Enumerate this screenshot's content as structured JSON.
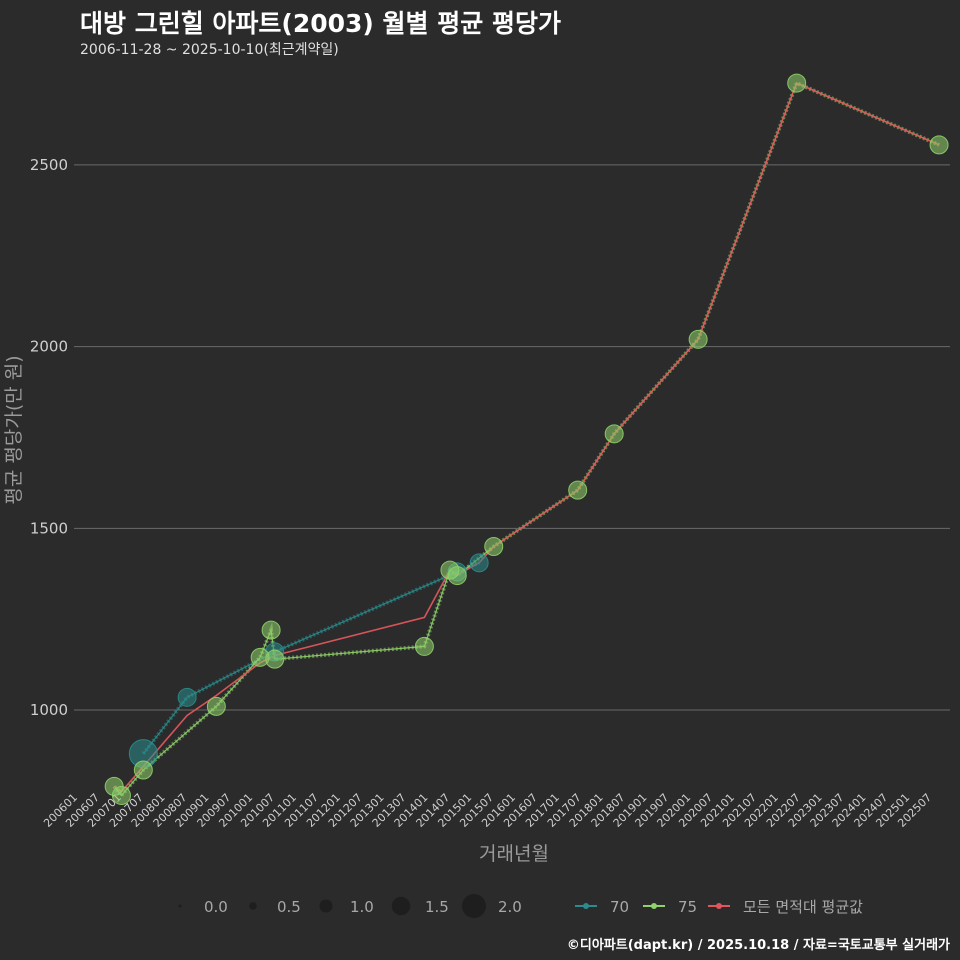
{
  "header": {
    "title": "대방 그린힐 아파트(2003) 월별 평균 평당가",
    "subtitle": "2006-11-28 ~ 2025-10-10(최근계약일)",
    "credit": "©디아파트(dapt.kr) / 2025.10.18 / 자료=국토교통부 실거래가"
  },
  "colors": {
    "background": "#2b2b2c",
    "grid": "#6a6a6a",
    "series_70": "#2a8c8c",
    "series_75": "#8fd16a",
    "series_avg": "#e0565c"
  },
  "chart_data": {
    "type": "line",
    "title": "대방 그린힐 아파트(2003) 월별 평균 평당가",
    "xlabel": "거래년월",
    "ylabel": "평균 평당가(만 원)",
    "x_range": [
      2006.0,
      2026.0
    ],
    "ylim": [
      780,
      2750
    ],
    "y_ticks": [
      1000,
      1500,
      2000,
      2500
    ],
    "x_tick_labels": [
      "200601",
      "200607",
      "200701",
      "200707",
      "200801",
      "200807",
      "200901",
      "200907",
      "201001",
      "201007",
      "201101",
      "201107",
      "201201",
      "201207",
      "201301",
      "201307",
      "201401",
      "201407",
      "201501",
      "201507",
      "201601",
      "201607",
      "201701",
      "201707",
      "201801",
      "201807",
      "201901",
      "201907",
      "202001",
      "202007",
      "202101",
      "202107",
      "202201",
      "202207",
      "202301",
      "202307",
      "202401",
      "202407",
      "202501",
      "202507"
    ],
    "grid": true,
    "size_legend": {
      "title": "",
      "values": [
        "0.0",
        "0.5",
        "1.0",
        "1.5",
        "2.0"
      ]
    },
    "series": [
      {
        "name": "70",
        "points": [
          {
            "x": 2007.583,
            "y": 880,
            "size": 2.0
          },
          {
            "x": 2008.583,
            "y": 1035,
            "size": 1.0
          },
          {
            "x": 2010.583,
            "y": 1160,
            "size": 1.0
          },
          {
            "x": 2014.75,
            "y": 1380,
            "size": 1.0
          },
          {
            "x": 2015.25,
            "y": 1405,
            "size": 1.0
          }
        ]
      },
      {
        "name": "75",
        "points": [
          {
            "x": 2006.917,
            "y": 790,
            "size": 1.0
          },
          {
            "x": 2007.083,
            "y": 765,
            "size": 1.0
          },
          {
            "x": 2007.583,
            "y": 835,
            "size": 1.0
          },
          {
            "x": 2009.25,
            "y": 1010,
            "size": 1.0
          },
          {
            "x": 2010.25,
            "y": 1145,
            "size": 1.0
          },
          {
            "x": 2010.583,
            "y": 1140,
            "size": 1.0
          },
          {
            "x": 2010.5,
            "y": 1220,
            "size": 1.0
          },
          {
            "x": 2014.0,
            "y": 1175,
            "size": 1.0
          },
          {
            "x": 2014.583,
            "y": 1385,
            "size": 1.0
          },
          {
            "x": 2014.75,
            "y": 1370,
            "size": 1.0
          },
          {
            "x": 2015.583,
            "y": 1450,
            "size": 1.0
          },
          {
            "x": 2017.5,
            "y": 1605,
            "size": 1.0
          },
          {
            "x": 2018.333,
            "y": 1760,
            "size": 1.0
          },
          {
            "x": 2020.25,
            "y": 2020,
            "size": 1.0
          },
          {
            "x": 2022.5,
            "y": 2725,
            "size": 1.0
          },
          {
            "x": 2025.75,
            "y": 2555,
            "size": 1.0
          }
        ]
      },
      {
        "name": "모든 면적대 평균값",
        "points": [
          {
            "x": 2006.917,
            "y": 790
          },
          {
            "x": 2007.083,
            "y": 775
          },
          {
            "x": 2007.583,
            "y": 845
          },
          {
            "x": 2008.583,
            "y": 985
          },
          {
            "x": 2009.25,
            "y": 1040
          },
          {
            "x": 2010.25,
            "y": 1130
          },
          {
            "x": 2010.583,
            "y": 1150
          },
          {
            "x": 2014.0,
            "y": 1255
          },
          {
            "x": 2014.583,
            "y": 1385
          },
          {
            "x": 2014.75,
            "y": 1372
          },
          {
            "x": 2015.25,
            "y": 1405
          },
          {
            "x": 2015.583,
            "y": 1450
          },
          {
            "x": 2017.5,
            "y": 1605
          },
          {
            "x": 2018.333,
            "y": 1760
          },
          {
            "x": 2020.25,
            "y": 2020
          },
          {
            "x": 2022.5,
            "y": 2725
          },
          {
            "x": 2025.75,
            "y": 2555
          }
        ]
      }
    ]
  }
}
